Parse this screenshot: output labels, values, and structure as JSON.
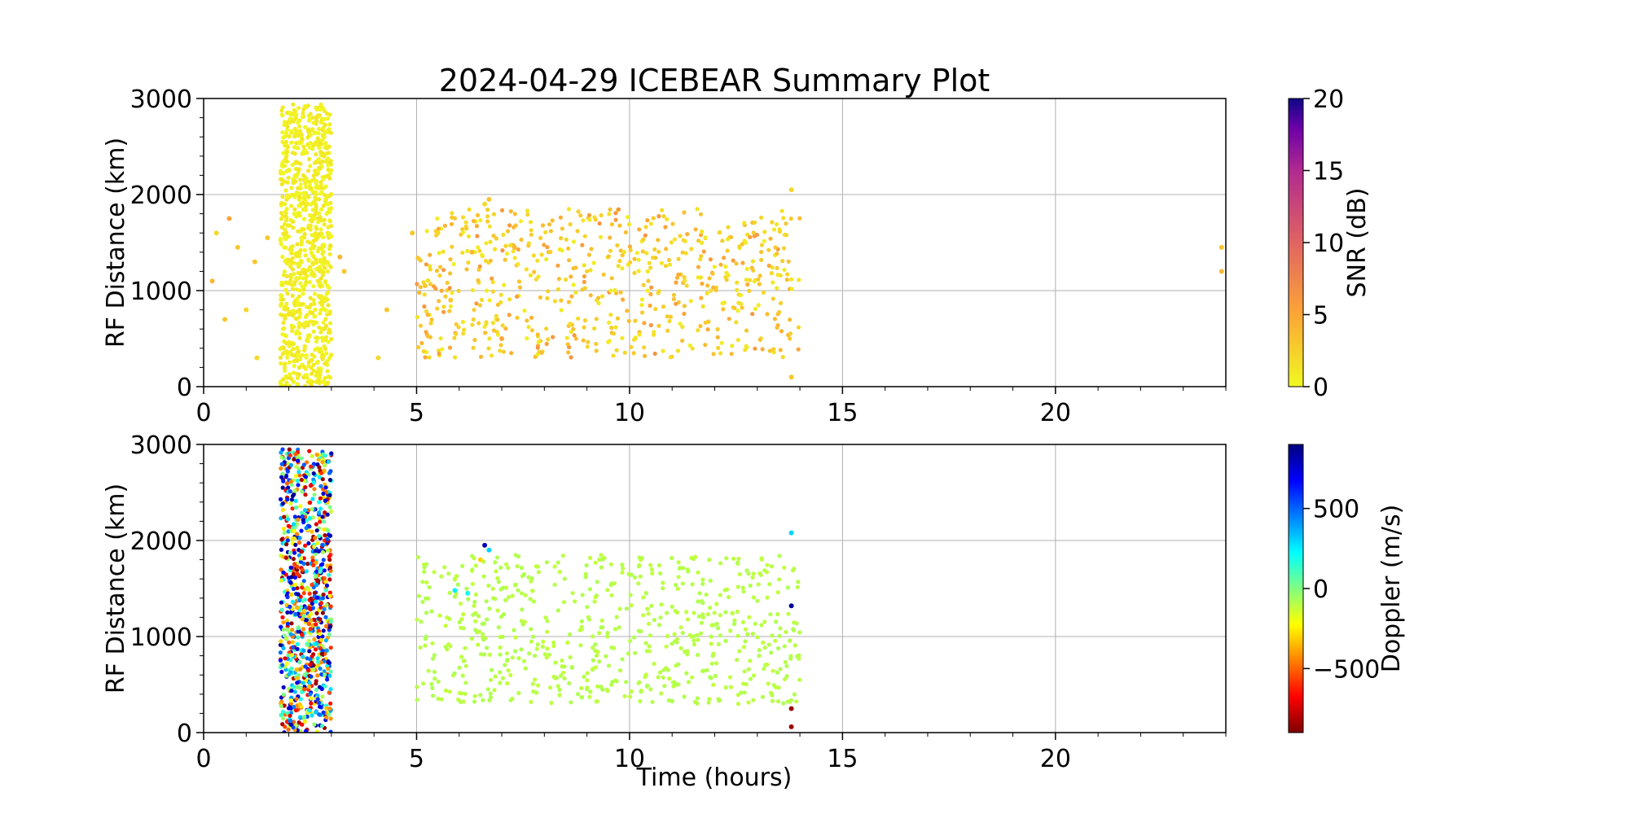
{
  "chart_data": [
    {
      "type": "scatter",
      "title": "2024-04-29 ICEBEAR Summary Plot",
      "xlabel": "",
      "ylabel": "RF Distance (km)",
      "xlim": [
        0,
        24
      ],
      "ylim": [
        0,
        3000
      ],
      "xticks": [
        0,
        5,
        10,
        15,
        20
      ],
      "yticks": [
        0,
        1000,
        2000,
        3000
      ],
      "grid": true,
      "color_variable": "SNR (dB)",
      "colorbar": {
        "label": "SNR (dB)",
        "colormap": "plasma_r",
        "range": [
          0,
          20
        ],
        "ticks": [
          0,
          5,
          10,
          15,
          20
        ]
      },
      "dominant_color_value": "0-5 dB (yellow-orange)",
      "points": [
        {
          "x": 0.2,
          "y": 1100,
          "c": 4
        },
        {
          "x": 0.3,
          "y": 1600,
          "c": 2
        },
        {
          "x": 0.5,
          "y": 700,
          "c": 3
        },
        {
          "x": 0.6,
          "y": 1750,
          "c": 5
        },
        {
          "x": 0.8,
          "y": 1450,
          "c": 3
        },
        {
          "x": 1.0,
          "y": 800,
          "c": 2
        },
        {
          "x": 1.2,
          "y": 1300,
          "c": 3
        },
        {
          "x": 1.25,
          "y": 300,
          "c": 2
        },
        {
          "x": 1.5,
          "y": 1550,
          "c": 3
        },
        {
          "x": 3.2,
          "y": 1350,
          "c": 4
        },
        {
          "x": 3.3,
          "y": 1200,
          "c": 3
        },
        {
          "x": 4.1,
          "y": 300,
          "c": 2
        },
        {
          "x": 4.3,
          "y": 800,
          "c": 3
        },
        {
          "x": 4.9,
          "y": 1600,
          "c": 3
        },
        {
          "x": 5.2,
          "y": 1050,
          "c": 3
        },
        {
          "x": 5.5,
          "y": 1600,
          "c": 2
        },
        {
          "x": 5.8,
          "y": 900,
          "c": 3
        },
        {
          "x": 6.3,
          "y": 1400,
          "c": 4
        },
        {
          "x": 6.6,
          "y": 1900,
          "c": 2
        },
        {
          "x": 6.7,
          "y": 1950,
          "c": 3
        },
        {
          "x": 7.0,
          "y": 500,
          "c": 5
        },
        {
          "x": 7.3,
          "y": 1450,
          "c": 4
        },
        {
          "x": 13.8,
          "y": 2050,
          "c": 2
        },
        {
          "x": 13.8,
          "y": 100,
          "c": 3
        },
        {
          "x": 23.9,
          "y": 1200,
          "c": 4
        },
        {
          "x": 23.9,
          "y": 1450,
          "c": 3
        }
      ],
      "dense_regions": [
        {
          "x_range": [
            1.8,
            3.0
          ],
          "y_range": [
            0,
            2950
          ],
          "count": 900
        },
        {
          "x_range": [
            5.0,
            14.0
          ],
          "y_range": [
            300,
            1850
          ],
          "count": 650
        }
      ]
    },
    {
      "type": "scatter",
      "title": "",
      "xlabel": "Time (hours)",
      "ylabel": "RF Distance (km)",
      "xlim": [
        0,
        24
      ],
      "ylim": [
        0,
        3000
      ],
      "xticks": [
        0,
        5,
        10,
        15,
        20
      ],
      "yticks": [
        0,
        1000,
        2000,
        3000
      ],
      "grid": true,
      "color_variable": "Doppler (m/s)",
      "colorbar": {
        "label": "Doppler (m/s)",
        "colormap": "jet_r",
        "range": [
          -900,
          900
        ],
        "ticks": [
          -500,
          0,
          500
        ]
      },
      "dominant_color_value": "approximately -100 m/s (green)",
      "points": [
        {
          "x": 6.6,
          "y": 1950,
          "c": 800
        },
        {
          "x": 6.7,
          "y": 1900,
          "c": 300
        },
        {
          "x": 6.5,
          "y": 1800,
          "c": -300
        },
        {
          "x": 6.2,
          "y": 1450,
          "c": 200
        },
        {
          "x": 5.9,
          "y": 1480,
          "c": 250
        },
        {
          "x": 13.8,
          "y": 2080,
          "c": 300
        },
        {
          "x": 13.8,
          "y": 1320,
          "c": 850
        },
        {
          "x": 13.8,
          "y": 250,
          "c": -850
        },
        {
          "x": 13.8,
          "y": 60,
          "c": -850
        }
      ],
      "dense_regions": [
        {
          "x_range": [
            1.8,
            3.0
          ],
          "y_range": [
            0,
            2950
          ],
          "count": 900,
          "c_range": [
            -900,
            900
          ]
        },
        {
          "x_range": [
            5.0,
            14.0
          ],
          "y_range": [
            300,
            1850
          ],
          "count": 650,
          "c": -100
        }
      ]
    }
  ]
}
